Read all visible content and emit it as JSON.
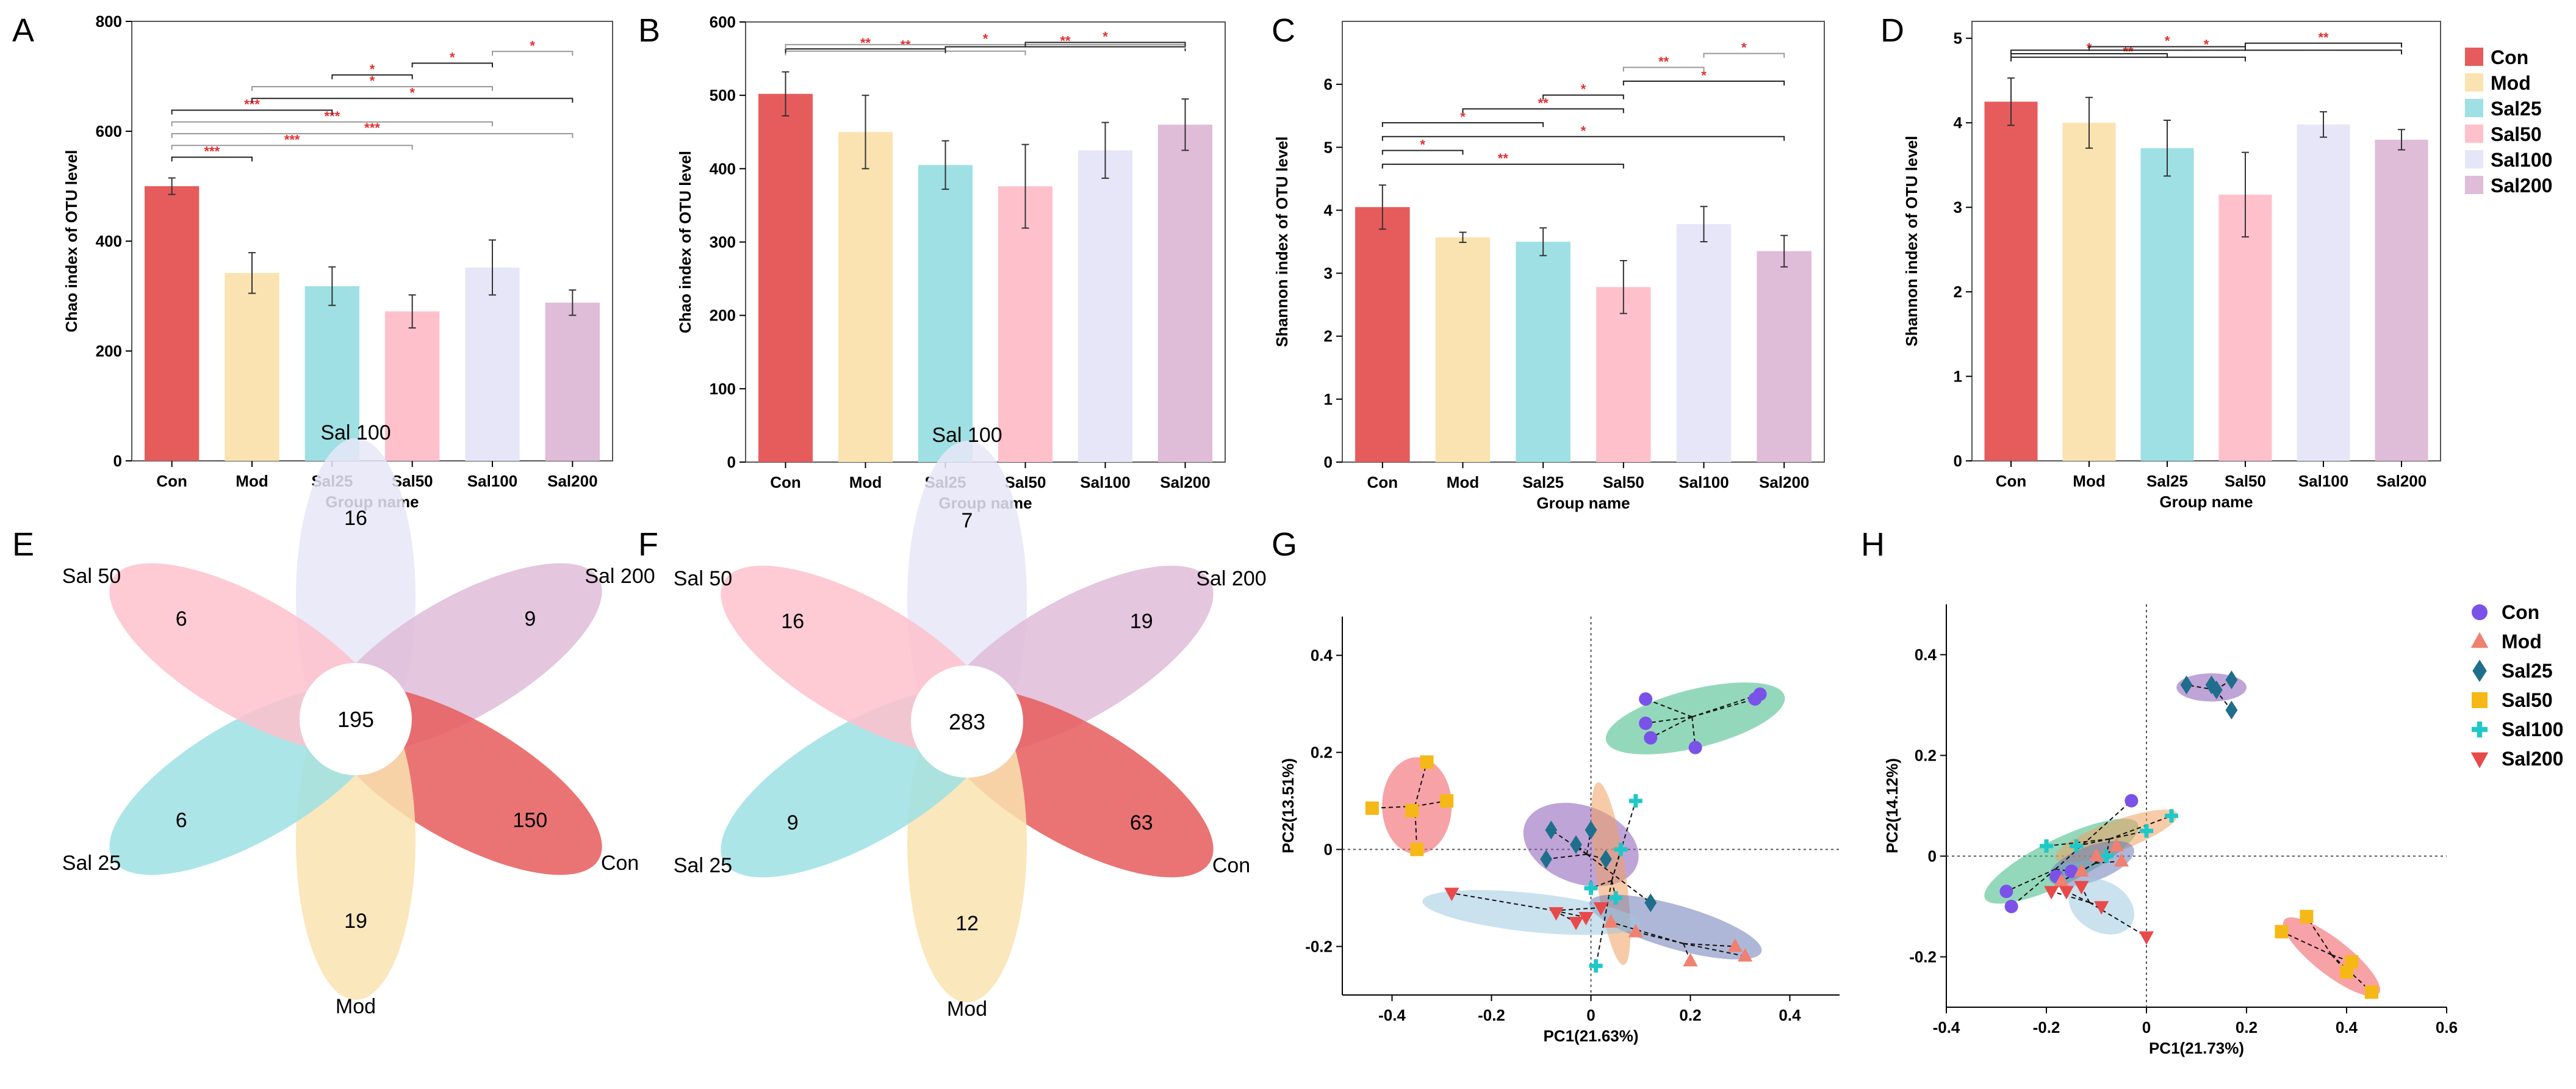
{
  "colors": {
    "Con": "#e65c5c",
    "Mod": "#fae3b0",
    "Sal25": "#9ee0e4",
    "Sal50": "#fec1cc",
    "Sal100": "#e6e6f8",
    "Sal200": "#dfbcd8",
    "sig": "#e62e2e",
    "pcoa_Con": "#7b52e8",
    "pcoa_Mod": "#f08070",
    "pcoa_Sal25": "#1f6e8c",
    "pcoa_Sal50": "#f5b817",
    "pcoa_Sal100": "#1ec8c8",
    "pcoa_Sal200": "#e84a4a"
  },
  "panel_letters": [
    "A",
    "B",
    "C",
    "D",
    "E",
    "F",
    "G",
    "H"
  ],
  "legend_bars": {
    "items": [
      "Con",
      "Mod",
      "Sal25",
      "Sal50",
      "Sal100",
      "Sal200"
    ]
  },
  "legend_pcoa": {
    "items": [
      "Con",
      "Mod",
      "Sal25",
      "Sal50",
      "Sal100",
      "Sal200"
    ],
    "markers": [
      "circle",
      "triangle-up",
      "diamond",
      "square",
      "plus",
      "triangle-down"
    ]
  },
  "chart_data": [
    {
      "panel": "A",
      "type": "bar",
      "categories": [
        "Con",
        "Mod",
        "Sal25",
        "Sal50",
        "Sal100",
        "Sal200"
      ],
      "values": [
        500,
        342,
        318,
        272,
        352,
        288
      ],
      "errors": [
        15,
        37,
        35,
        30,
        50,
        23
      ],
      "ylim": [
        0,
        800
      ],
      "yticks": [
        0,
        200,
        400,
        600,
        800
      ],
      "ylabel": "Chao index of OTU level",
      "xlabel": "Group name",
      "brackets": [
        {
          "from": 0,
          "to": 1,
          "label": "***",
          "level": 0,
          "color": "black"
        },
        {
          "from": 0,
          "to": 3,
          "label": "***",
          "level": 1,
          "color": "gray"
        },
        {
          "from": 0,
          "to": 5,
          "label": "***",
          "level": 2,
          "color": "gray"
        },
        {
          "from": 0,
          "to": 4,
          "label": "***",
          "level": 3,
          "color": "gray"
        },
        {
          "from": 0,
          "to": 2,
          "label": "***",
          "level": 4,
          "color": "black"
        },
        {
          "from": 1,
          "to": 5,
          "label": "*",
          "level": 5,
          "color": "black"
        },
        {
          "from": 1,
          "to": 4,
          "label": "*",
          "level": 6,
          "color": "gray"
        },
        {
          "from": 2,
          "to": 3,
          "label": "*",
          "level": 7,
          "color": "black"
        },
        {
          "from": 3,
          "to": 4,
          "label": "*",
          "level": 8,
          "color": "black"
        },
        {
          "from": 4,
          "to": 5,
          "label": "*",
          "level": 9,
          "color": "gray"
        }
      ]
    },
    {
      "panel": "B",
      "type": "bar",
      "categories": [
        "Con",
        "Mod",
        "Sal25",
        "Sal50",
        "Sal100",
        "Sal200"
      ],
      "values": [
        502,
        450,
        405,
        376,
        425,
        460
      ],
      "errors": [
        30,
        50,
        33,
        57,
        38,
        35
      ],
      "ylim": [
        0,
        600
      ],
      "yticks": [
        0,
        100,
        200,
        300,
        400,
        500,
        600
      ],
      "ylabel": "Chao index of OTU level",
      "xlabel": "Group name",
      "brackets": [
        {
          "from": 0,
          "to": 3,
          "label": "**",
          "level": 0,
          "color": "gray"
        },
        {
          "from": 0,
          "to": 2,
          "label": "**",
          "level": 1,
          "color": "black"
        },
        {
          "from": 2,
          "to": 5,
          "label": "**",
          "level": 2,
          "color": "black"
        },
        {
          "from": 0,
          "to": 5,
          "label": "*",
          "level": 3,
          "color": "gray"
        },
        {
          "from": 3,
          "to": 5,
          "label": "*",
          "level": 4,
          "color": "black"
        }
      ]
    },
    {
      "panel": "C",
      "type": "bar",
      "categories": [
        "Con",
        "Mod",
        "Sal25",
        "Sal50",
        "Sal100",
        "Sal200"
      ],
      "values": [
        4.05,
        3.57,
        3.5,
        2.78,
        3.78,
        3.35
      ],
      "errors": [
        0.35,
        0.08,
        0.22,
        0.42,
        0.28,
        0.25
      ],
      "ylim": [
        0,
        7
      ],
      "yticks": [
        0,
        1,
        2,
        3,
        4,
        5,
        6
      ],
      "ylabel": "Shannon index of OTU level",
      "xlabel": "Group name",
      "brackets": [
        {
          "from": 0,
          "to": 3,
          "label": "**",
          "level": 0,
          "color": "black"
        },
        {
          "from": 0,
          "to": 1,
          "label": "*",
          "level": 1,
          "color": "black"
        },
        {
          "from": 0,
          "to": 5,
          "label": "*",
          "level": 2,
          "color": "black"
        },
        {
          "from": 0,
          "to": 2,
          "label": "*",
          "level": 3,
          "color": "black"
        },
        {
          "from": 1,
          "to": 3,
          "label": "**",
          "level": 4,
          "color": "black"
        },
        {
          "from": 2,
          "to": 3,
          "label": "*",
          "level": 5,
          "color": "black"
        },
        {
          "from": 3,
          "to": 5,
          "label": "*",
          "level": 6,
          "color": "black"
        },
        {
          "from": 3,
          "to": 4,
          "label": "**",
          "level": 7,
          "color": "gray"
        },
        {
          "from": 4,
          "to": 5,
          "label": "*",
          "level": 8,
          "color": "gray"
        }
      ]
    },
    {
      "panel": "D",
      "type": "bar",
      "categories": [
        "Con",
        "Mod",
        "Sal25",
        "Sal50",
        "Sal100",
        "Sal200"
      ],
      "values": [
        4.25,
        4.0,
        3.7,
        3.15,
        3.98,
        3.8
      ],
      "errors": [
        0.28,
        0.3,
        0.33,
        0.5,
        0.15,
        0.12
      ],
      "ylim": [
        0,
        5.2
      ],
      "yticks": [
        0,
        1,
        2,
        3,
        4,
        5
      ],
      "ylabel": "Shannon index of OTU level",
      "xlabel": "Group name",
      "brackets": [
        {
          "from": 0,
          "to": 3,
          "label": "**",
          "level": 0,
          "color": "black"
        },
        {
          "from": 0,
          "to": 2,
          "label": "*",
          "level": 1,
          "color": "black"
        },
        {
          "from": 0,
          "to": 5,
          "label": "*",
          "level": 2,
          "color": "black"
        },
        {
          "from": 1,
          "to": 3,
          "label": "*",
          "level": 3,
          "color": "black"
        },
        {
          "from": 3,
          "to": 5,
          "label": "**",
          "level": 4,
          "color": "black"
        }
      ]
    },
    {
      "panel": "E",
      "type": "venn",
      "center": 195,
      "petals": [
        {
          "group": "Sal 100",
          "value": 16
        },
        {
          "group": "Sal 200",
          "value": 9
        },
        {
          "group": "Con",
          "value": 150
        },
        {
          "group": "Mod",
          "value": 19
        },
        {
          "group": "Sal 25",
          "value": 6
        },
        {
          "group": "Sal 50",
          "value": 6
        }
      ]
    },
    {
      "panel": "F",
      "type": "venn",
      "center": 283,
      "petals": [
        {
          "group": "Sal 100",
          "value": 7
        },
        {
          "group": "Sal 200",
          "value": 19
        },
        {
          "group": "Con",
          "value": 63
        },
        {
          "group": "Mod",
          "value": 12
        },
        {
          "group": "Sal 25",
          "value": 9
        },
        {
          "group": "Sal 50",
          "value": 16
        }
      ]
    },
    {
      "panel": "G",
      "type": "scatter",
      "xlabel": "PC1(21.63%)",
      "ylabel": "PC2(13.51%)",
      "xlim": [
        -0.5,
        0.5
      ],
      "ylim": [
        -0.3,
        0.48
      ],
      "xticks": [
        -0.4,
        -0.2,
        0,
        0.2,
        0.4
      ],
      "yticks": [
        -0.2,
        0,
        0.2,
        0.4
      ],
      "xtick_labels": [
        "-0.4",
        "-0.2",
        "0",
        "0.2",
        "0.4"
      ],
      "ytick_labels": [
        "-0.2",
        "0",
        "0.2",
        "0.4"
      ],
      "series": [
        {
          "name": "Con",
          "points": [
            [
              0.11,
              0.31
            ],
            [
              0.34,
              0.32
            ],
            [
              0.12,
              0.23
            ],
            [
              0.21,
              0.21
            ],
            [
              0.11,
              0.26
            ],
            [
              0.33,
              0.31
            ]
          ],
          "ellipse": {
            "cx": 0.21,
            "cy": 0.27,
            "rx": 0.185,
            "ry": 0.06,
            "angle": 14,
            "fill": "#3cb883"
          }
        },
        {
          "name": "Sal25",
          "points": [
            [
              -0.08,
              0.04
            ],
            [
              -0.09,
              -0.02
            ],
            [
              0.0,
              0.04
            ],
            [
              -0.03,
              0.01
            ],
            [
              0.12,
              -0.11
            ],
            [
              0.03,
              -0.02
            ]
          ],
          "ellipse": {
            "cx": -0.02,
            "cy": 0.01,
            "rx": 0.12,
            "ry": 0.08,
            "angle": -20,
            "fill": "#8a5ab8"
          }
        },
        {
          "name": "Sal50",
          "points": [
            [
              -0.44,
              0.085
            ],
            [
              -0.33,
              0.18
            ],
            [
              -0.36,
              0.08
            ],
            [
              -0.29,
              0.1
            ],
            [
              -0.35,
              0.0
            ]
          ],
          "ellipse": {
            "cx": -0.35,
            "cy": 0.09,
            "rx": 0.07,
            "ry": 0.1,
            "angle": 0,
            "fill": "#f0565c"
          }
        },
        {
          "name": "Sal100",
          "points": [
            [
              0.09,
              0.1
            ],
            [
              0.0,
              -0.08
            ],
            [
              0.06,
              0.0
            ],
            [
              0.01,
              -0.24
            ],
            [
              0.05,
              -0.1
            ]
          ],
          "ellipse": {
            "cx": 0.04,
            "cy": -0.05,
            "rx": 0.03,
            "ry": 0.19,
            "angle": 8,
            "fill": "#f0a060"
          }
        },
        {
          "name": "Mod",
          "points": [
            [
              0.2,
              -0.23
            ],
            [
              0.29,
              -0.2
            ],
            [
              0.31,
              -0.22
            ],
            [
              0.09,
              -0.17
            ],
            [
              0.04,
              -0.15
            ]
          ],
          "ellipse": {
            "cx": 0.17,
            "cy": -0.16,
            "rx": 0.18,
            "ry": 0.045,
            "angle": -16,
            "fill": "#6e7bb8"
          }
        },
        {
          "name": "Sal200",
          "points": [
            [
              -0.28,
              -0.09
            ],
            [
              -0.07,
              -0.13
            ],
            [
              -0.01,
              -0.14
            ],
            [
              0.02,
              -0.12
            ],
            [
              -0.03,
              -0.15
            ]
          ],
          "ellipse": {
            "cx": -0.12,
            "cy": -0.13,
            "rx": 0.22,
            "ry": 0.04,
            "angle": -6,
            "fill": "#9ec8e0"
          }
        }
      ]
    },
    {
      "panel": "H",
      "type": "scatter",
      "xlabel": "PC1(21.73%)",
      "ylabel": "PC2(14.12%)",
      "xlim": [
        -0.4,
        0.6
      ],
      "ylim": [
        -0.3,
        0.5
      ],
      "xticks": [
        -0.4,
        -0.2,
        0,
        0.2,
        0.4,
        0.6
      ],
      "yticks": [
        -0.2,
        0,
        0.2,
        0.4
      ],
      "xtick_labels": [
        "-0.4",
        "-0.2",
        "0",
        "0.2",
        "0.4",
        "0.6"
      ],
      "ytick_labels": [
        "-0.2",
        "0",
        "0.2",
        "0.4"
      ],
      "series": [
        {
          "name": "Con",
          "points": [
            [
              -0.27,
              -0.1
            ],
            [
              -0.28,
              -0.07
            ],
            [
              -0.18,
              -0.04
            ],
            [
              -0.03,
              0.11
            ],
            [
              -0.15,
              -0.03
            ]
          ],
          "ellipse": {
            "cx": -0.17,
            "cy": -0.01,
            "rx": 0.17,
            "ry": 0.045,
            "angle": 26,
            "fill": "#3cb883"
          }
        },
        {
          "name": "Sal25",
          "points": [
            [
              0.08,
              0.34
            ],
            [
              0.13,
              0.34
            ],
            [
              0.17,
              0.29
            ],
            [
              0.17,
              0.35
            ],
            [
              0.14,
              0.33
            ]
          ],
          "ellipse": {
            "cx": 0.13,
            "cy": 0.335,
            "rx": 0.07,
            "ry": 0.028,
            "angle": 0,
            "fill": "#8a5ab8"
          }
        },
        {
          "name": "Sal50",
          "points": [
            [
              0.27,
              -0.15
            ],
            [
              0.32,
              -0.12
            ],
            [
              0.41,
              -0.21
            ],
            [
              0.45,
              -0.27
            ],
            [
              0.4,
              -0.23
            ]
          ],
          "ellipse": {
            "cx": 0.37,
            "cy": -0.2,
            "rx": 0.12,
            "ry": 0.035,
            "angle": -38,
            "fill": "#f0565c"
          }
        },
        {
          "name": "Sal100",
          "points": [
            [
              -0.2,
              0.02
            ],
            [
              -0.14,
              0.02
            ],
            [
              -0.08,
              0.0
            ],
            [
              0.0,
              0.05
            ],
            [
              0.05,
              0.08
            ]
          ],
          "ellipse": {
            "cx": -0.06,
            "cy": 0.04,
            "rx": 0.13,
            "ry": 0.03,
            "angle": 20,
            "fill": "#f0a060"
          }
        },
        {
          "name": "Mod",
          "points": [
            [
              -0.06,
              0.02
            ],
            [
              -0.1,
              0.0
            ],
            [
              -0.17,
              -0.05
            ],
            [
              -0.05,
              -0.01
            ],
            [
              -0.13,
              -0.03
            ]
          ],
          "ellipse": {
            "cx": -0.11,
            "cy": -0.015,
            "rx": 0.09,
            "ry": 0.035,
            "angle": 20,
            "fill": "#6e7bb8"
          }
        },
        {
          "name": "Sal200",
          "points": [
            [
              -0.19,
              -0.07
            ],
            [
              -0.16,
              -0.07
            ],
            [
              -0.13,
              -0.06
            ],
            [
              -0.09,
              -0.1
            ],
            [
              0.0,
              -0.16
            ]
          ],
          "ellipse": {
            "cx": -0.09,
            "cy": -0.1,
            "rx": 0.07,
            "ry": 0.05,
            "angle": -30,
            "fill": "#9ec8e0"
          }
        }
      ]
    }
  ]
}
